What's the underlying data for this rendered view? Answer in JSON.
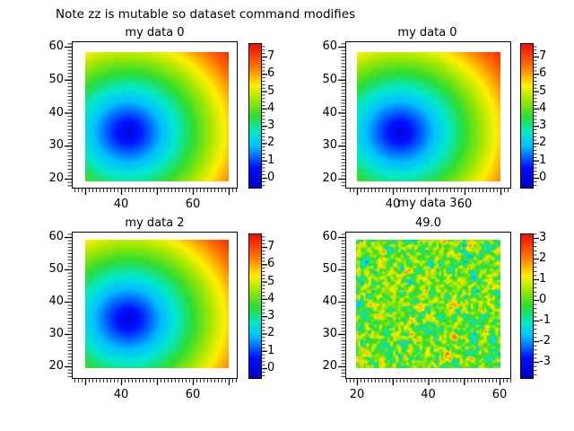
{
  "figure": {
    "title": "Note zz is mutable so dataset command modifies",
    "background_color": "#ffffff",
    "text_color": "#000000"
  },
  "colormap": {
    "name": "jet",
    "stops": [
      {
        "t": 0.0,
        "color": "#0000c0"
      },
      {
        "t": 0.14,
        "color": "#0010ff"
      },
      {
        "t": 0.29,
        "color": "#00c0ff"
      },
      {
        "t": 0.38,
        "color": "#00e8d0"
      },
      {
        "t": 0.5,
        "color": "#30dd30"
      },
      {
        "t": 0.62,
        "color": "#a8e800"
      },
      {
        "t": 0.71,
        "color": "#fff000"
      },
      {
        "t": 0.85,
        "color": "#ff7000"
      },
      {
        "t": 1.0,
        "color": "#f01000"
      }
    ]
  },
  "chart_data": [
    {
      "type": "heatmap",
      "title": "my data 0",
      "pattern": "radial",
      "x_range": [
        30,
        70
      ],
      "y_range": [
        19,
        58.4
      ],
      "center": {
        "x": 42,
        "y": 34
      },
      "value_formula": "sqrt((x-42)^2+(y-34)^2)/5",
      "x_tick_labels": [
        "",
        "40",
        "",
        "60",
        ""
      ],
      "y_tick_labels": [
        "60",
        "50",
        "40",
        "30",
        "20"
      ],
      "colorbar": {
        "labels": [
          "7",
          "6",
          "5",
          "4",
          "3",
          "2",
          "1",
          "0"
        ],
        "vmin": -0.52,
        "vmax": 7.78
      }
    },
    {
      "type": "heatmap",
      "title": "my data 0",
      "pattern": "radial",
      "x_range": [
        30,
        70
      ],
      "y_range": [
        19,
        58.4
      ],
      "center": {
        "x": 42,
        "y": 34
      },
      "value_formula": "sqrt((x-42)^2+(y-34)^2)/5",
      "x_tick_labels": [
        "",
        "40",
        "",
        "60",
        ""
      ],
      "y_tick_labels": [
        "60",
        "50",
        "40",
        "30",
        "20"
      ],
      "colorbar": {
        "labels": [
          "7",
          "6",
          "5",
          "4",
          "3",
          "2",
          "1",
          "0"
        ],
        "vmin": -0.52,
        "vmax": 7.78
      }
    },
    {
      "type": "heatmap",
      "title": "my data 2",
      "pattern": "radial",
      "x_range": [
        30,
        70
      ],
      "y_range": [
        19,
        58.4
      ],
      "center": {
        "x": 42,
        "y": 34
      },
      "value_formula": "sqrt((x-42)^2+(y-34)^2)/5",
      "x_tick_labels": [
        "",
        "40",
        "",
        "60",
        ""
      ],
      "y_tick_labels": [
        "60",
        "50",
        "40",
        "30",
        "20"
      ],
      "colorbar": {
        "labels": [
          "7",
          "6",
          "5",
          "4",
          "3",
          "2",
          "1",
          "0"
        ],
        "vmin": -0.52,
        "vmax": 7.78
      }
    },
    {
      "type": "heatmap",
      "title": "my data 3",
      "subtitle": "49.0",
      "pattern": "gaussian-noise",
      "x_range": [
        20,
        60
      ],
      "y_range": [
        20,
        59
      ],
      "x_tick_labels": [
        "20",
        "",
        "40",
        "",
        "60"
      ],
      "y_tick_labels": [
        "60",
        "50",
        "40",
        "30",
        "20"
      ],
      "colorbar": {
        "labels": [
          "3",
          "2",
          "1",
          "0",
          "-1",
          "-2",
          "-3"
        ],
        "vmin": -3.74,
        "vmax": 3.22
      }
    }
  ]
}
